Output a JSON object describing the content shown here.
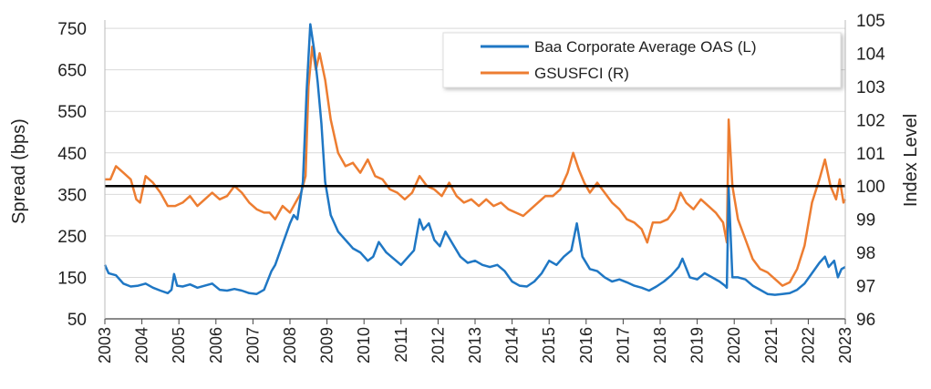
{
  "chart_data": {
    "type": "line",
    "title": "",
    "xlabel": "",
    "ylabel_left": "Spread (bps)",
    "ylabel_right": "Index Level",
    "ylim_left": [
      50,
      770
    ],
    "ylim_right": [
      96,
      105
    ],
    "yticks_left": [
      "50",
      "150",
      "250",
      "350",
      "450",
      "550",
      "650",
      "750"
    ],
    "yticks_right": [
      "96",
      "97",
      "98",
      "99",
      "100",
      "101",
      "102",
      "103",
      "104",
      "105"
    ],
    "xlim": [
      2003,
      2023
    ],
    "xticks": [
      "2003",
      "2004",
      "2005",
      "2006",
      "2007",
      "2008",
      "2009",
      "2010",
      "2011",
      "2012",
      "2013",
      "2014",
      "2015",
      "2016",
      "2017",
      "2018",
      "2019",
      "2020",
      "2021",
      "2022",
      "2023"
    ],
    "grid": "horizontal",
    "legend_position": "top-right",
    "reference_line": {
      "axis": "right",
      "value": 100
    },
    "series": [
      {
        "name": "Baa Corporate Average OAS (L)",
        "axis": "left",
        "color": "#1f77c4",
        "x": [
          2003.0,
          2003.1,
          2003.3,
          2003.5,
          2003.7,
          2003.9,
          2004.1,
          2004.3,
          2004.5,
          2004.7,
          2004.8,
          2004.87,
          2004.95,
          2005.1,
          2005.3,
          2005.5,
          2005.7,
          2005.9,
          2006.1,
          2006.3,
          2006.5,
          2006.7,
          2006.9,
          2007.1,
          2007.3,
          2007.5,
          2007.6,
          2007.8,
          2008.0,
          2008.1,
          2008.2,
          2008.35,
          2008.45,
          2008.55,
          2008.65,
          2008.75,
          2008.85,
          2008.95,
          2009.1,
          2009.3,
          2009.5,
          2009.7,
          2009.9,
          2010.1,
          2010.25,
          2010.4,
          2010.6,
          2010.8,
          2011.0,
          2011.2,
          2011.35,
          2011.5,
          2011.6,
          2011.75,
          2011.9,
          2012.05,
          2012.2,
          2012.4,
          2012.6,
          2012.8,
          2013.0,
          2013.2,
          2013.4,
          2013.6,
          2013.8,
          2014.0,
          2014.2,
          2014.4,
          2014.6,
          2014.8,
          2015.0,
          2015.2,
          2015.4,
          2015.6,
          2015.75,
          2015.9,
          2016.1,
          2016.3,
          2016.5,
          2016.7,
          2016.9,
          2017.1,
          2017.3,
          2017.5,
          2017.7,
          2017.9,
          2018.1,
          2018.3,
          2018.5,
          2018.6,
          2018.8,
          2019.0,
          2019.2,
          2019.4,
          2019.6,
          2019.75,
          2019.8,
          2019.85,
          2019.95,
          2020.1,
          2020.3,
          2020.5,
          2020.7,
          2020.9,
          2021.1,
          2021.3,
          2021.5,
          2021.7,
          2021.9,
          2022.1,
          2022.3,
          2022.45,
          2022.55,
          2022.7,
          2022.8,
          2022.9,
          2023.0
        ],
        "y": [
          180,
          160,
          155,
          135,
          128,
          130,
          135,
          125,
          118,
          112,
          120,
          158,
          130,
          128,
          133,
          125,
          130,
          135,
          120,
          118,
          122,
          118,
          112,
          110,
          120,
          165,
          180,
          230,
          280,
          300,
          290,
          380,
          600,
          760,
          700,
          620,
          520,
          380,
          300,
          260,
          240,
          220,
          210,
          190,
          200,
          235,
          210,
          195,
          180,
          200,
          215,
          290,
          265,
          280,
          240,
          225,
          260,
          230,
          200,
          185,
          190,
          180,
          175,
          180,
          165,
          140,
          130,
          128,
          140,
          160,
          190,
          180,
          200,
          215,
          280,
          200,
          170,
          165,
          150,
          140,
          145,
          138,
          130,
          125,
          118,
          128,
          140,
          155,
          175,
          195,
          150,
          145,
          160,
          150,
          140,
          130,
          125,
          365,
          150,
          150,
          145,
          130,
          120,
          110,
          108,
          110,
          112,
          120,
          135,
          160,
          185,
          200,
          175,
          190,
          150,
          170,
          175
        ]
      },
      {
        "name": "GSUSFCI (R)",
        "axis": "right",
        "color": "#ed7d31",
        "x": [
          2003.0,
          2003.15,
          2003.3,
          2003.5,
          2003.7,
          2003.85,
          2003.95,
          2004.1,
          2004.3,
          2004.5,
          2004.7,
          2004.9,
          2005.1,
          2005.3,
          2005.5,
          2005.7,
          2005.9,
          2006.1,
          2006.3,
          2006.5,
          2006.7,
          2006.9,
          2007.1,
          2007.3,
          2007.45,
          2007.6,
          2007.8,
          2008.0,
          2008.15,
          2008.3,
          2008.42,
          2008.5,
          2008.6,
          2008.7,
          2008.8,
          2008.95,
          2009.1,
          2009.3,
          2009.5,
          2009.7,
          2009.9,
          2010.1,
          2010.3,
          2010.5,
          2010.7,
          2010.9,
          2011.1,
          2011.3,
          2011.5,
          2011.7,
          2011.9,
          2012.1,
          2012.3,
          2012.5,
          2012.7,
          2012.9,
          2013.1,
          2013.3,
          2013.5,
          2013.7,
          2013.9,
          2014.1,
          2014.3,
          2014.5,
          2014.7,
          2014.9,
          2015.1,
          2015.3,
          2015.5,
          2015.65,
          2015.8,
          2015.95,
          2016.1,
          2016.3,
          2016.5,
          2016.7,
          2016.9,
          2017.1,
          2017.3,
          2017.5,
          2017.65,
          2017.8,
          2018.0,
          2018.2,
          2018.4,
          2018.55,
          2018.7,
          2018.9,
          2019.1,
          2019.3,
          2019.5,
          2019.7,
          2019.8,
          2019.85,
          2019.95,
          2020.1,
          2020.3,
          2020.5,
          2020.7,
          2020.9,
          2021.1,
          2021.3,
          2021.5,
          2021.7,
          2021.9,
          2022.1,
          2022.3,
          2022.45,
          2022.6,
          2022.75,
          2022.85,
          2022.95,
          2023.0
        ],
        "y": [
          100.2,
          100.2,
          100.6,
          100.4,
          100.2,
          99.6,
          99.5,
          100.3,
          100.1,
          99.8,
          99.4,
          99.4,
          99.5,
          99.7,
          99.4,
          99.6,
          99.8,
          99.6,
          99.7,
          100.0,
          99.8,
          99.5,
          99.3,
          99.2,
          99.2,
          99.0,
          99.4,
          99.2,
          99.5,
          99.8,
          100.3,
          103.0,
          104.2,
          103.5,
          104.0,
          103.2,
          102.0,
          101.0,
          100.6,
          100.7,
          100.4,
          100.8,
          100.3,
          100.2,
          99.9,
          99.8,
          99.6,
          99.8,
          100.3,
          100.0,
          99.9,
          99.7,
          100.1,
          99.7,
          99.5,
          99.6,
          99.4,
          99.6,
          99.4,
          99.5,
          99.3,
          99.2,
          99.1,
          99.3,
          99.5,
          99.7,
          99.7,
          99.9,
          100.4,
          101.0,
          100.5,
          100.1,
          99.8,
          100.1,
          99.8,
          99.5,
          99.3,
          99.0,
          98.9,
          98.7,
          98.3,
          98.9,
          98.9,
          99.0,
          99.3,
          99.8,
          99.5,
          99.3,
          99.6,
          99.4,
          99.2,
          98.9,
          98.3,
          102.0,
          100.0,
          99.0,
          98.4,
          97.8,
          97.5,
          97.4,
          97.2,
          97.0,
          97.1,
          97.5,
          98.2,
          99.5,
          100.2,
          100.8,
          100.0,
          99.6,
          100.2,
          99.5,
          99.6
        ]
      }
    ]
  }
}
